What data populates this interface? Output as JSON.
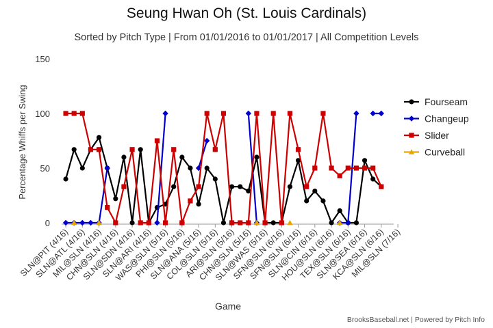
{
  "title": "Seung Hwan Oh (St. Louis Cardinals)",
  "subtitle": "Sorted by Pitch Type | From 01/01/2016 to 01/01/2017 | All Competition Levels",
  "credits": "BrooksBaseball.net | Powered by Pitch Info",
  "chart_data": {
    "type": "line",
    "title": "Seung Hwan Oh (St. Louis Cardinals)",
    "subtitle": "Sorted by Pitch Type | From 01/01/2016 to 01/01/2017 | All Competition Levels",
    "xlabel": "Game",
    "ylabel": "Percentage Whiffs per Swing",
    "ylim": [
      0,
      150
    ],
    "yticks": [
      0,
      50,
      100,
      150
    ],
    "grid": false,
    "legend_position": "right",
    "categories": [
      "1",
      "2",
      "3",
      "4",
      "5",
      "6",
      "7",
      "8",
      "9",
      "10",
      "11",
      "12",
      "13",
      "14",
      "15",
      "16",
      "17",
      "18",
      "19",
      "20",
      "21",
      "22",
      "23",
      "24",
      "25",
      "26",
      "27",
      "28",
      "29",
      "30",
      "31",
      "32",
      "33",
      "34",
      "35",
      "36",
      "37",
      "38",
      "39",
      "40"
    ],
    "tick_labels": [
      "SLN@PIT (4/16)",
      "SLN@ATL (4/16)",
      "MIL@SLN (4/16)",
      "CHN@SLN (4/16)",
      "SLN@SDN (4/16)",
      "SLN@ARI (4/16)",
      "WAS@SLN (5/16)",
      "PHI@SLN (5/16)",
      "SLN@ANA (5/16)",
      "COL@SLN (5/16)",
      "ARI@SLN (5/16)",
      "CHN@SLN (5/16)",
      "SLN@WAS (5/16)",
      "SFN@SLN (6/16)",
      "SFN@SLN (6/16)",
      "SLN@CIN (6/16)",
      "HOU@SLN (6/16)",
      "TEX@SLN (6/16)",
      "SLN@SEA (6/16)",
      "KCA@SLN (6/16)",
      "MIL@SLN (7/16)"
    ],
    "tick_positions": [
      1,
      3,
      5,
      7,
      9,
      11,
      13,
      15,
      17,
      19,
      21,
      23,
      25,
      27,
      29,
      31,
      33,
      35,
      37,
      39,
      41
    ],
    "series": [
      {
        "name": "Fourseam",
        "color": "#000000",
        "marker": "circle",
        "values": [
          40,
          67,
          50,
          67,
          78,
          50,
          22,
          60,
          0,
          67,
          0,
          14,
          17,
          33,
          60,
          50,
          17,
          50,
          40,
          0,
          33,
          33,
          29,
          60,
          0,
          0,
          0,
          33,
          57,
          20,
          29,
          20,
          0,
          11,
          0,
          0,
          57,
          40,
          33,
          null
        ]
      },
      {
        "name": "Changeup",
        "color": "#0000cc",
        "marker": "diamond",
        "values": [
          0,
          0,
          0,
          0,
          0,
          50,
          null,
          null,
          null,
          null,
          null,
          0,
          100,
          null,
          0,
          null,
          50,
          75,
          null,
          null,
          0,
          null,
          100,
          0,
          null,
          null,
          null,
          null,
          null,
          null,
          null,
          null,
          null,
          0,
          0,
          100,
          null,
          100,
          100,
          null
        ]
      },
      {
        "name": "Slider",
        "color": "#cc0000",
        "marker": "square",
        "values": [
          100,
          100,
          100,
          67,
          67,
          14,
          0,
          33,
          67,
          0,
          0,
          75,
          0,
          67,
          0,
          20,
          33,
          100,
          67,
          100,
          0,
          0,
          0,
          100,
          0,
          100,
          0,
          100,
          67,
          33,
          50,
          100,
          50,
          43,
          50,
          50,
          50,
          50,
          33,
          null
        ]
      },
      {
        "name": "Curveball",
        "color": "#e6a800",
        "marker": "triangle",
        "values": [
          null,
          0,
          null,
          null,
          0,
          null,
          null,
          null,
          null,
          null,
          null,
          null,
          null,
          null,
          null,
          null,
          null,
          null,
          null,
          null,
          null,
          null,
          null,
          0,
          null,
          null,
          null,
          0,
          null,
          null,
          null,
          null,
          null,
          0,
          null,
          null,
          null,
          null,
          null,
          null
        ]
      }
    ]
  }
}
